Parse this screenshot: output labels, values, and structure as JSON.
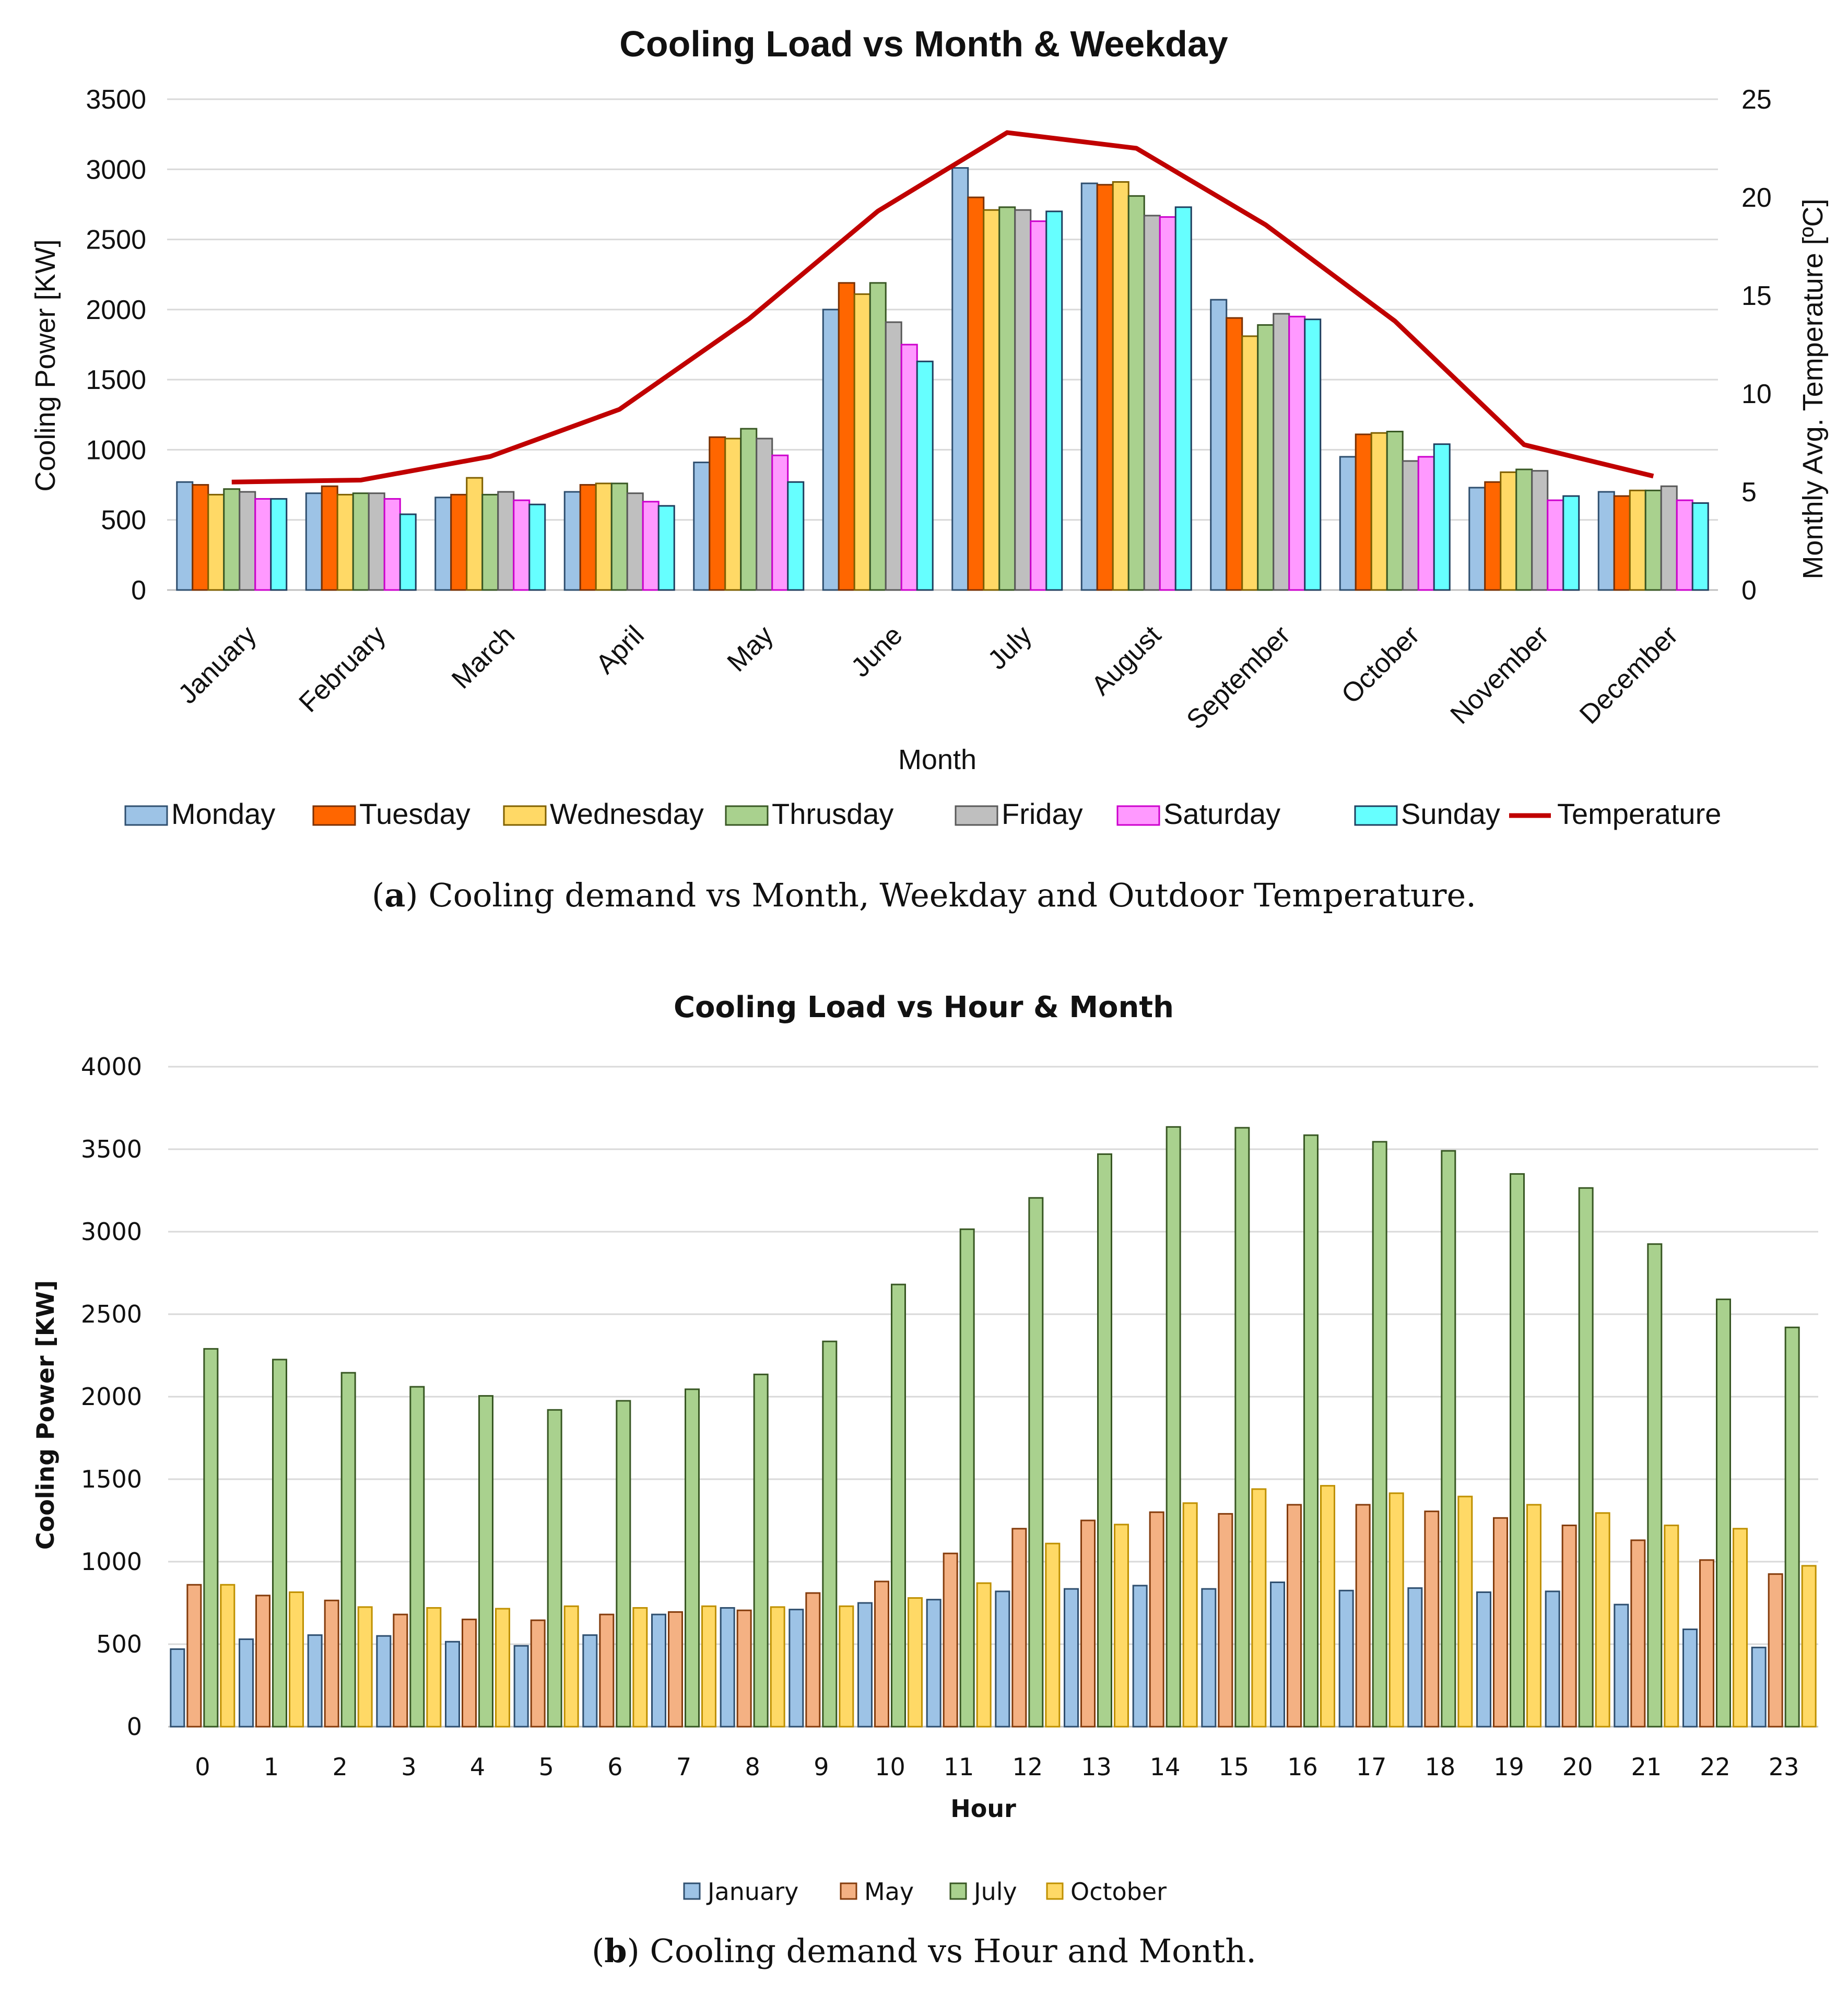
{
  "chart_data": [
    {
      "type": "bar",
      "title": "Cooling Load vs Month & Weekday",
      "xlabel": "Month",
      "ylabel": "Cooling Power [KW]",
      "y2label": "Monthly Avg. Temperature [ºC]",
      "ylim": [
        0,
        3500
      ],
      "yticks": [
        0,
        500,
        1000,
        1500,
        2000,
        2500,
        3000,
        3500
      ],
      "y2lim": [
        0,
        25
      ],
      "y2ticks": [
        0,
        5,
        10,
        15,
        20,
        25
      ],
      "grid": true,
      "legend": "bottom",
      "categories": [
        "January",
        "February",
        "March",
        "April",
        "May",
        "June",
        "July",
        "August",
        "September",
        "October",
        "November",
        "December"
      ],
      "series": [
        {
          "name": "Monday",
          "color": "#9dc3e6",
          "stroke": "#2f4f6f",
          "values": [
            770,
            690,
            660,
            700,
            910,
            2000,
            3010,
            2900,
            2070,
            950,
            730,
            700
          ]
        },
        {
          "name": "Tuesday",
          "color": "#ff6600",
          "stroke": "#7a3000",
          "values": [
            750,
            740,
            680,
            750,
            1090,
            2190,
            2800,
            2890,
            1940,
            1110,
            770,
            670
          ]
        },
        {
          "name": "Wednesday",
          "color": "#ffd966",
          "stroke": "#7f6000",
          "values": [
            680,
            680,
            800,
            760,
            1080,
            2110,
            2710,
            2910,
            1810,
            1120,
            840,
            710
          ]
        },
        {
          "name": "Thrusday",
          "color": "#a9d18e",
          "stroke": "#385723",
          "values": [
            720,
            690,
            680,
            760,
            1150,
            2190,
            2730,
            2810,
            1890,
            1130,
            860,
            710
          ]
        },
        {
          "name": "Friday",
          "color": "#bfbfbf",
          "stroke": "#595959",
          "values": [
            700,
            690,
            700,
            690,
            1080,
            1910,
            2710,
            2670,
            1970,
            920,
            850,
            740
          ]
        },
        {
          "name": "Saturday",
          "color": "#ff99ff",
          "stroke": "#cc00cc",
          "values": [
            650,
            650,
            640,
            630,
            960,
            1750,
            2630,
            2660,
            1950,
            950,
            640,
            640
          ]
        },
        {
          "name": "Sunday",
          "color": "#66ffff",
          "stroke": "#1f3f5f",
          "values": [
            650,
            540,
            610,
            600,
            770,
            1630,
            2700,
            2730,
            1930,
            1040,
            670,
            620
          ]
        }
      ],
      "line_series": {
        "name": "Temperature",
        "color": "#c00000",
        "axis": "right",
        "values": [
          5.5,
          5.6,
          6.8,
          9.2,
          13.8,
          19.3,
          23.3,
          22.5,
          18.6,
          13.7,
          7.4,
          5.8
        ]
      }
    },
    {
      "type": "bar",
      "title": "Cooling Load vs Hour & Month",
      "xlabel": "Hour",
      "ylabel": "Cooling Power [KW]",
      "ylim": [
        0,
        4000
      ],
      "yticks": [
        0,
        500,
        1000,
        1500,
        2000,
        2500,
        3000,
        3500,
        4000
      ],
      "grid": true,
      "legend": "bottom",
      "categories": [
        "0",
        "1",
        "2",
        "3",
        "4",
        "5",
        "6",
        "7",
        "8",
        "9",
        "10",
        "11",
        "12",
        "13",
        "14",
        "15",
        "16",
        "17",
        "18",
        "19",
        "20",
        "21",
        "22",
        "23"
      ],
      "series": [
        {
          "name": "January",
          "color": "#9dc3e6",
          "stroke": "#2f4f6f",
          "values": [
            470,
            530,
            555,
            550,
            515,
            490,
            555,
            680,
            720,
            710,
            750,
            770,
            820,
            835,
            855,
            835,
            875,
            825,
            840,
            815,
            820,
            740,
            590,
            480
          ]
        },
        {
          "name": "May",
          "color": "#f4b183",
          "stroke": "#843c0c",
          "values": [
            860,
            795,
            765,
            680,
            650,
            645,
            680,
            695,
            705,
            810,
            880,
            1050,
            1200,
            1250,
            1300,
            1290,
            1345,
            1345,
            1305,
            1265,
            1220,
            1130,
            1010,
            925
          ]
        },
        {
          "name": "July",
          "color": "#a9d18e",
          "stroke": "#385723",
          "values": [
            2290,
            2225,
            2145,
            2060,
            2005,
            1920,
            1975,
            2045,
            2135,
            2335,
            2680,
            3015,
            3205,
            3470,
            3635,
            3630,
            3585,
            3545,
            3490,
            3350,
            3265,
            2925,
            2590,
            2420
          ]
        },
        {
          "name": "October",
          "color": "#ffd966",
          "stroke": "#bf9000",
          "values": [
            860,
            815,
            725,
            720,
            715,
            730,
            720,
            730,
            725,
            730,
            780,
            870,
            1110,
            1225,
            1355,
            1440,
            1460,
            1415,
            1395,
            1345,
            1295,
            1220,
            1200,
            975
          ]
        }
      ]
    }
  ],
  "captions": {
    "a": {
      "label": "a",
      "text": "Cooling demand vs Month, Weekday and Outdoor Temperature."
    },
    "b": {
      "label": "b",
      "text": "Cooling demand vs Hour and Month."
    }
  }
}
